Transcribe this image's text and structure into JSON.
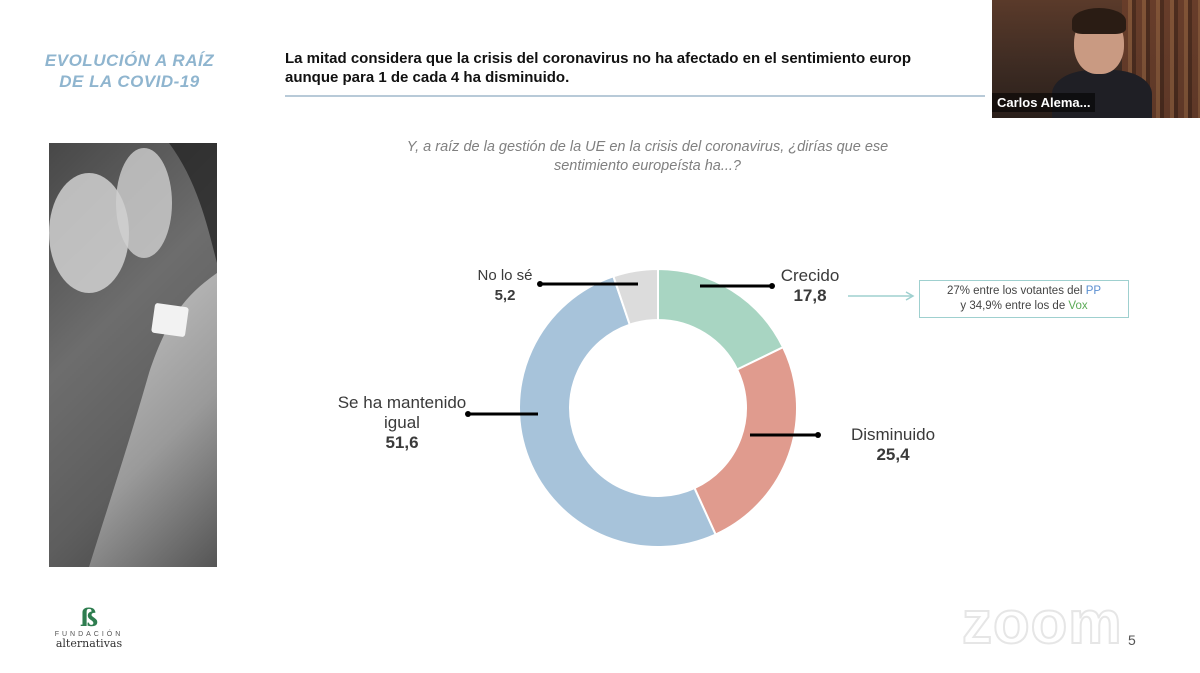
{
  "slide": {
    "title_line1": "EVOLUCIÓN A RAÍZ",
    "title_line2": "DE LA COVID-19",
    "title_color": "#8fb5cf",
    "headline_line1": "La mitad considera que la crisis del coronavirus no ha afectado en el sentimiento europ",
    "headline_line2": "aunque para 1 de cada 4 ha disminuido.",
    "question_line1": "Y, a raíz de la gestión de la UE en la crisis del coronavirus, ¿dirías que ese",
    "question_line2": "sentimiento europeísta ha...?",
    "page_number": "5"
  },
  "chart_data": {
    "type": "pie",
    "categories": [
      "Crecido",
      "Disminuido",
      "Se ha mantenido igual",
      "No lo sé"
    ],
    "values": [
      17.8,
      25.4,
      51.6,
      5.2
    ],
    "value_labels": [
      "17,8",
      "25,4",
      "51,6",
      "5,2"
    ],
    "colors": [
      "#a8d5c2",
      "#e09b8e",
      "#a7c3da",
      "#dcdcdc"
    ],
    "style": "donut"
  },
  "labels": {
    "crecido_name": "Crecido",
    "crecido_value": "17,8",
    "disminuido_name": "Disminuido",
    "disminuido_value": "25,4",
    "mantenido_line1": "Se ha mantenido",
    "mantenido_line2": "igual",
    "mantenido_value": "51,6",
    "nolose_name": "No lo sé",
    "nolose_value": "5,2"
  },
  "callout": {
    "line1_pre": "27% entre los votantes del ",
    "line1_party": "PP",
    "line2_pre": "y 34,9% entre los de ",
    "line2_party": "Vox",
    "pp_color": "#5b8fd1",
    "vox_color": "#5cab57"
  },
  "video": {
    "participant_name": "Carlos Alema..."
  },
  "logo": {
    "line1": "FUNDACIÓN",
    "line2": "alternativas"
  },
  "watermark": {
    "text": "zoom"
  }
}
